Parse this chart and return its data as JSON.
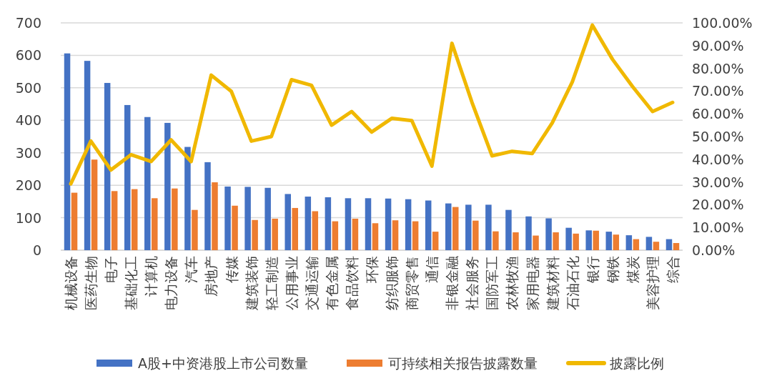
{
  "chart_data": {
    "type": "bar",
    "categories": [
      "机械设备",
      "医药生物",
      "电子",
      "基础化工",
      "计算机",
      "电力设备",
      "汽车",
      "房地产",
      "传媒",
      "建筑装饰",
      "轻工制造",
      "公用事业",
      "交通运输",
      "有色金属",
      "食品饮料",
      "环保",
      "纺织服饰",
      "商贸零售",
      "通信",
      "非银金融",
      "社会服务",
      "国防军工",
      "农林牧渔",
      "家用电器",
      "建筑材料",
      "石油石化",
      "银行",
      "钢铁",
      "煤炭",
      "美容护理",
      "综合"
    ],
    "series": [
      {
        "name": "A股+中资港股上市公司数量",
        "color": "#4472c4",
        "values": [
          606,
          583,
          515,
          447,
          410,
          392,
          318,
          271,
          196,
          195,
          192,
          173,
          165,
          163,
          160,
          160,
          159,
          157,
          153,
          144,
          140,
          140,
          124,
          104,
          98,
          69,
          61,
          57,
          46,
          41,
          34
        ]
      },
      {
        "name": "可持续相关报告披露数量",
        "color": "#ed7d31",
        "values": [
          177,
          279,
          182,
          188,
          160,
          190,
          124,
          209,
          137,
          93,
          97,
          130,
          120,
          89,
          97,
          83,
          92,
          89,
          57,
          133,
          91,
          58,
          55,
          45,
          55,
          51,
          60,
          48,
          34,
          26,
          22
        ]
      },
      {
        "name": "披露比例",
        "type": "line",
        "axis": "y2",
        "color": "#f0b800",
        "values": [
          29.2,
          48,
          35.3,
          42,
          39,
          48.5,
          39,
          77,
          69.9,
          48,
          50,
          75,
          72.5,
          55,
          61,
          52,
          58,
          57,
          37,
          91,
          65,
          41.5,
          43.5,
          42.5,
          56,
          74,
          99,
          84,
          72,
          61,
          65
        ]
      }
    ],
    "ylim": [
      0,
      700
    ],
    "yticks": [
      0,
      100,
      200,
      300,
      400,
      500,
      600,
      700
    ],
    "y2lim": [
      0,
      100
    ],
    "y2ticks": [
      {
        "value": 0,
        "label": "0.00%"
      },
      {
        "value": 10,
        "label": "10.00%"
      },
      {
        "value": 20,
        "label": "20.00%"
      },
      {
        "value": 30,
        "label": "30.00%"
      },
      {
        "value": 40,
        "label": "40.00%"
      },
      {
        "value": 50,
        "label": "50.00%"
      },
      {
        "value": 60,
        "label": "60.00%"
      },
      {
        "value": 70,
        "label": "70.00%"
      },
      {
        "value": 80,
        "label": "80.00%"
      },
      {
        "value": 90,
        "label": "90.00%"
      },
      {
        "value": 100,
        "label": "100.00%"
      }
    ],
    "grid": "y",
    "legend": "bottom",
    "marker": "none",
    "line_style": "solid"
  }
}
